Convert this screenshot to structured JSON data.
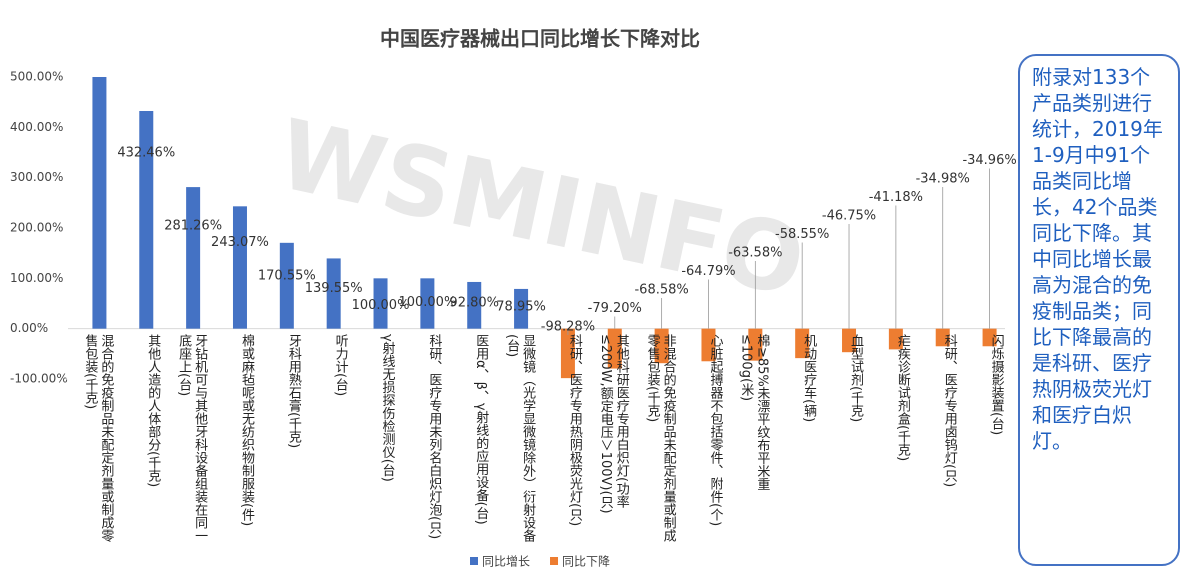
{
  "chart_data": {
    "type": "bar",
    "title": "中国医疗器械出口同比增长下降对比",
    "watermark": "WSMINFO",
    "categories": [
      "混合的免疫制品未配定剂量或制成零售包装(千克)",
      "其他人造的人体部分(千克)",
      "牙钻机可与其他牙科设备组装在同一底座上(台)",
      "棉或麻毡呢或无纺织物制服装(件)",
      "牙科用熟石膏(千克)",
      "听力计(台)",
      "γ射线无损探伤检测仪(台)",
      "科研、医疗专用未列名白炽灯泡(只)",
      "医用α、β、γ射线的应用设备(台)",
      "显微镜（光学显微镜除外）衍射设备(台)",
      "科研、医疗专用热阴极荧光灯(只)",
      "其他科研医疗专用白炽灯(功率≤200W,额定电压＞100V)(只)",
      "非混合的免疫制品未配定剂量或制成零售包装(千克)",
      "心脏起搏器不包括零件、附件(个)",
      "棉≥85%未漂平纹布平米重≤100g(米)",
      "机动医疗车(辆)",
      "血型试剂(千克)",
      "疟疾诊断试剂盒(千克)",
      "科研、医疗专用卤钨灯(只)",
      "闪烁摄影装置(台)"
    ],
    "series": [
      {
        "name": "同比增长",
        "color": "#4472c4",
        "values": [
          500,
          432.46,
          281.26,
          243.07,
          170.55,
          139.55,
          100.0,
          100.0,
          92.8,
          78.95,
          null,
          null,
          null,
          null,
          null,
          null,
          null,
          null,
          null,
          null
        ],
        "value_labels": [
          null,
          "432.46%",
          "281.26%",
          "243.07%",
          "170.55%",
          "139.55%",
          "100.00%",
          "100.00%",
          "92.80%",
          "78.95%",
          null,
          null,
          null,
          null,
          null,
          null,
          null,
          null,
          null,
          null
        ]
      },
      {
        "name": "同比下降",
        "color": "#ed7d31",
        "values": [
          null,
          null,
          null,
          null,
          null,
          null,
          null,
          null,
          null,
          null,
          -98.28,
          -79.2,
          -68.58,
          -64.79,
          -63.58,
          -58.55,
          -46.75,
          -41.18,
          -34.98,
          -34.96
        ],
        "value_labels": [
          null,
          null,
          null,
          null,
          null,
          null,
          null,
          null,
          null,
          null,
          "-98.28%",
          "-79.20%",
          "-68.58%",
          "-64.79%",
          "-63.58%",
          "-58.55%",
          "-46.75%",
          "-41.18%",
          "-34.98%",
          "-34.96%"
        ]
      }
    ],
    "ylim": [
      -100,
      500
    ],
    "yticks": [
      {
        "value": -100,
        "label": "-100.00%"
      },
      {
        "value": 0,
        "label": "0.00%"
      },
      {
        "value": 100,
        "label": "100.00%"
      },
      {
        "value": 200,
        "label": "200.00%"
      },
      {
        "value": 300,
        "label": "300.00%"
      },
      {
        "value": 400,
        "label": "400.00%"
      },
      {
        "value": 500,
        "label": "500.00%"
      }
    ],
    "legend": "bottom"
  },
  "note": "附录对133个产品类别进行统计，2019年1-9月中91个品类同比增长，42个品类同比下降。其中同比增长最高为混合的免疫制品类；同比下降最高的是科研、医疗热阴极荧光灯和医疗白炽灯。"
}
